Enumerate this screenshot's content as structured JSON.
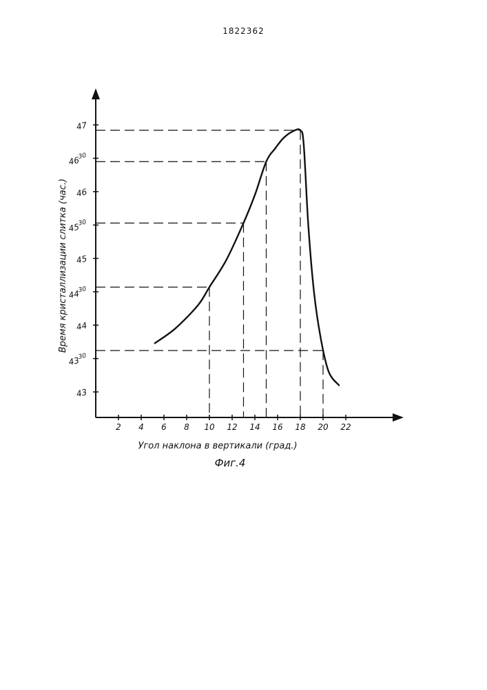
{
  "page_number": "1822362",
  "chart_data": {
    "type": "line",
    "xlabel": "Угол наклона в вертикали (град.)",
    "ylabel": "Время кристаллизации слитка (час.)",
    "caption": "Фиг.4",
    "x_ticks": [
      2,
      4,
      6,
      8,
      10,
      12,
      14,
      16,
      18,
      20,
      22
    ],
    "y_ticks": [
      {
        "main": "43",
        "sup": "",
        "value": 43
      },
      {
        "main": "43",
        "sup": "30",
        "value": 43.5
      },
      {
        "main": "44",
        "sup": "",
        "value": 44
      },
      {
        "main": "44",
        "sup": "30",
        "value": 44.5
      },
      {
        "main": "45",
        "sup": "",
        "value": 45
      },
      {
        "main": "45",
        "sup": "30",
        "value": 45.5
      },
      {
        "main": "46",
        "sup": "",
        "value": 46
      },
      {
        "main": "46",
        "sup": "30",
        "value": 46.5
      },
      {
        "main": "47",
        "sup": "",
        "value": 47
      }
    ],
    "xlim": [
      0,
      26
    ],
    "ylim": [
      42.8,
      47.3
    ],
    "curve": [
      {
        "x": 5.2,
        "y": 43.73
      },
      {
        "x": 7.0,
        "y": 43.95
      },
      {
        "x": 9.0,
        "y": 44.3
      },
      {
        "x": 10.0,
        "y": 44.57
      },
      {
        "x": 11.5,
        "y": 44.98
      },
      {
        "x": 13.0,
        "y": 45.53
      },
      {
        "x": 14.0,
        "y": 45.95
      },
      {
        "x": 15.0,
        "y": 46.45
      },
      {
        "x": 15.8,
        "y": 46.65
      },
      {
        "x": 16.5,
        "y": 46.8
      },
      {
        "x": 17.3,
        "y": 46.9
      },
      {
        "x": 18.0,
        "y": 46.92
      },
      {
        "x": 18.3,
        "y": 46.7
      },
      {
        "x": 18.7,
        "y": 45.5
      },
      {
        "x": 19.2,
        "y": 44.5
      },
      {
        "x": 19.8,
        "y": 43.8
      },
      {
        "x": 20.5,
        "y": 43.3
      },
      {
        "x": 21.4,
        "y": 43.1
      }
    ],
    "reference_points": [
      {
        "x": 10.0,
        "y": 44.57
      },
      {
        "x": 13.0,
        "y": 45.53
      },
      {
        "x": 15.0,
        "y": 46.45
      },
      {
        "x": 18.0,
        "y": 46.92
      },
      {
        "x": 20.0,
        "y": 43.62
      }
    ],
    "line_color": "#111111"
  }
}
